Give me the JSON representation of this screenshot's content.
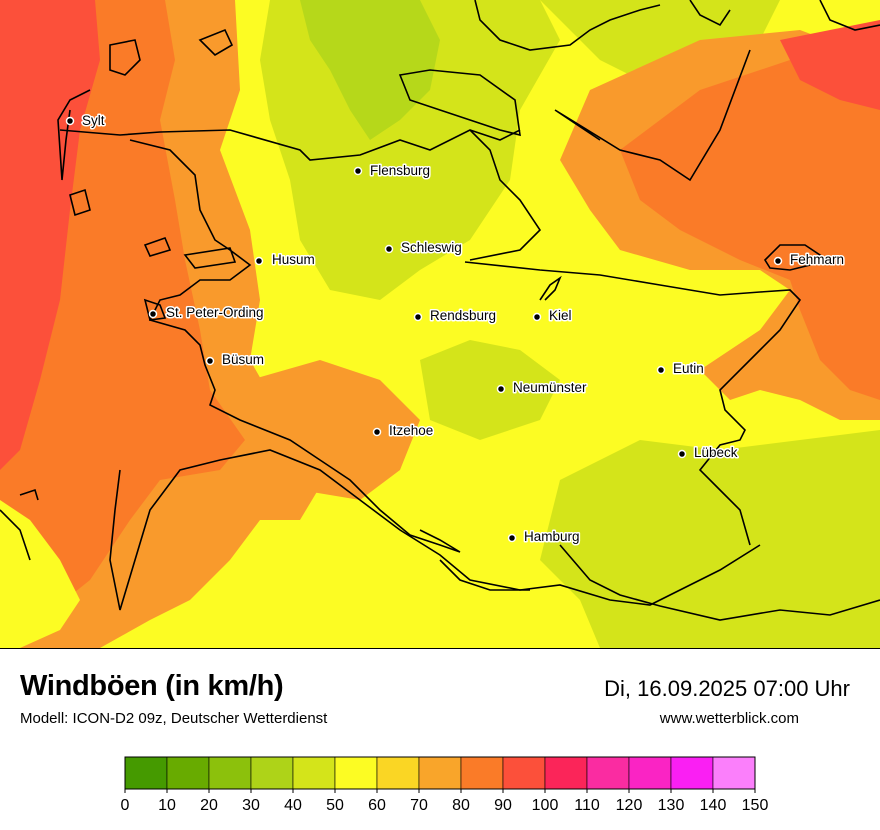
{
  "title": "Windböen (in km/h)",
  "subtitle": "Modell: ICON-D2 09z, Deutscher Wetterdienst",
  "datetime": "Di, 16.09.2025 07:00 Uhr",
  "website": "www.wetterblick.com",
  "cities": [
    {
      "name": "Sylt"
    },
    {
      "name": "Flensburg"
    },
    {
      "name": "Schleswig"
    },
    {
      "name": "Husum"
    },
    {
      "name": "Fehmarn"
    },
    {
      "name": "St. Peter-Ording"
    },
    {
      "name": "Rendsburg"
    },
    {
      "name": "Kiel"
    },
    {
      "name": "Büsum"
    },
    {
      "name": "Eutin"
    },
    {
      "name": "Neumünster"
    },
    {
      "name": "Itzehoe"
    },
    {
      "name": "Lübeck"
    },
    {
      "name": "Hamburg"
    }
  ],
  "legend": {
    "ticks": [
      "0",
      "10",
      "20",
      "30",
      "40",
      "50",
      "60",
      "70",
      "80",
      "90",
      "100",
      "110",
      "120",
      "130",
      "140",
      "150"
    ],
    "colors": [
      "#459a00",
      "#68ab00",
      "#8cc10c",
      "#aed318",
      "#d4e41a",
      "#fcfc23",
      "#fad624",
      "#f9a52a",
      "#fa7b28",
      "#fc503a",
      "#fb2559",
      "#fa2ca1",
      "#fa24c4",
      "#fa1ff3",
      "#fb7ffb"
    ]
  },
  "colors": {
    "sea_strong": "#fa6e2c",
    "sea_medium": "#f99a2c",
    "land_light": "#fcfc23",
    "land_green": "#d4e41a",
    "land_greener": "#b6d81a"
  }
}
